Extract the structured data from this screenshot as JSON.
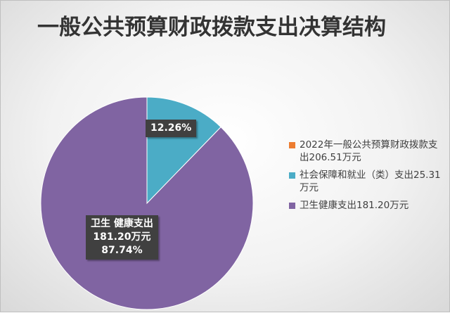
{
  "chart_data": {
    "type": "pie",
    "title": "一般公共预算财政拨款支出决算结构",
    "unit": "万元",
    "colors": [
      "#ed7d31",
      "#4bacc6",
      "#8064a2"
    ],
    "slices": [
      {
        "name": "2022年一般公共预算财政拨款支出206.51万元",
        "value": 0
      },
      {
        "name": "社会保障和就业（类）支出25.31万元",
        "value": 25.31,
        "percent": 12.26
      },
      {
        "name": "卫生健康支出181.20万元",
        "value": 181.2,
        "percent": 87.74
      }
    ],
    "labels": {
      "teal": "12.26%",
      "purple_line1": "卫生 健康支出",
      "purple_line2": "181.20万元",
      "purple_line3": "87.74%"
    },
    "legend_position": "right"
  }
}
